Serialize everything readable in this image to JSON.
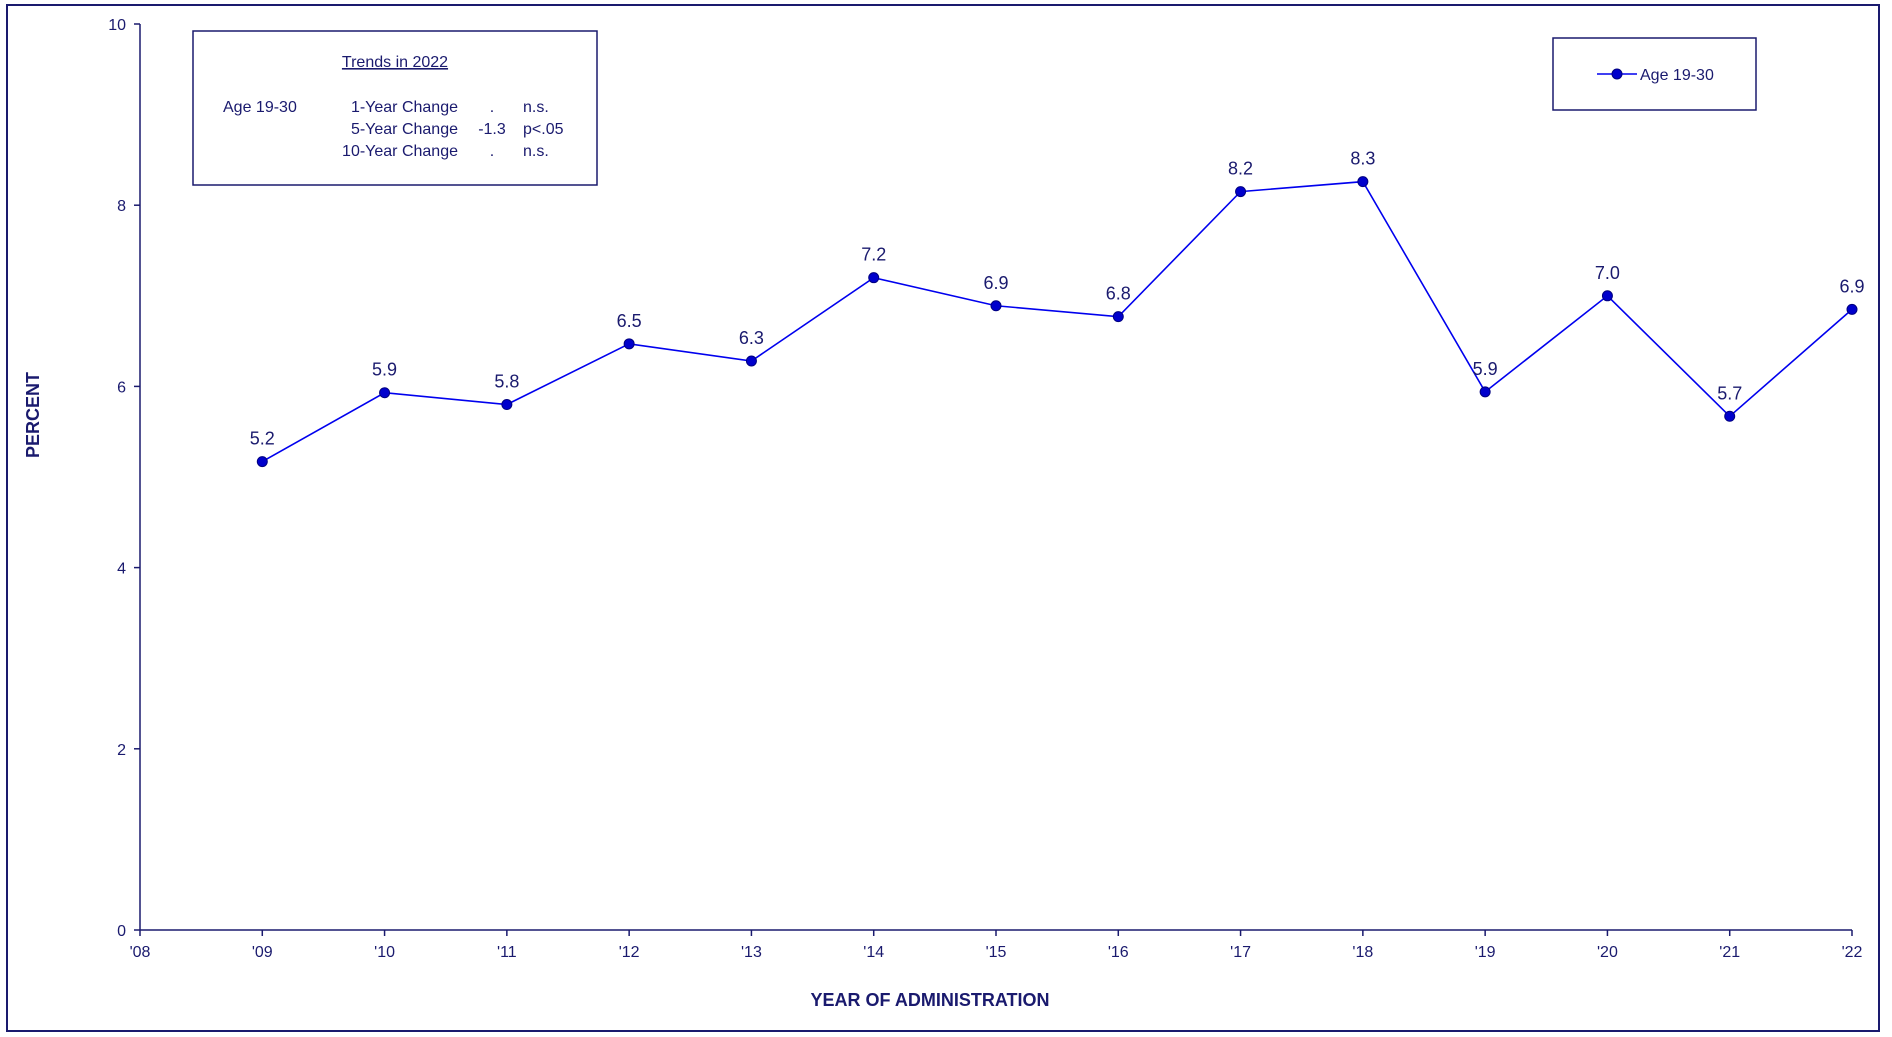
{
  "chart_data": {
    "type": "line",
    "x": [
      "'09",
      "'10",
      "'11",
      "'12",
      "'13",
      "'14",
      "'15",
      "'16",
      "'17",
      "'18",
      "'19",
      "'20",
      "'21",
      "'22"
    ],
    "x_tick_labels": [
      "'08",
      "'09",
      "'10",
      "'11",
      "'12",
      "'13",
      "'14",
      "'15",
      "'16",
      "'17",
      "'18",
      "'19",
      "'20",
      "'21",
      "'22"
    ],
    "series": [
      {
        "name": "Age 19-30",
        "values": [
          5.17,
          5.93,
          5.8,
          6.47,
          6.28,
          7.2,
          6.89,
          6.77,
          8.15,
          8.26,
          5.94,
          7.0,
          5.67,
          6.85
        ],
        "labels": [
          "5.2",
          "5.9",
          "5.8",
          "6.5",
          "6.3",
          "7.2",
          "6.9",
          "6.8",
          "8.2",
          "8.3",
          "5.9",
          "7.0",
          "5.7",
          "6.9"
        ]
      }
    ],
    "ylim": [
      0,
      10
    ],
    "y_ticks": [
      0,
      2,
      4,
      6,
      8,
      10
    ],
    "xlabel": "YEAR OF ADMINISTRATION",
    "ylabel": "PERCENT",
    "grid": false,
    "legend": "top-right",
    "color": "#0000ee",
    "axis_color": "#1a1a6e"
  },
  "trends_box": {
    "title": "Trends in 2022",
    "group": "Age 19-30",
    "rows": [
      {
        "label": "1-Year Change",
        "value": ".",
        "sig": "n.s."
      },
      {
        "label": "5-Year Change",
        "value": "-1.3",
        "sig": "p<.05"
      },
      {
        "label": "10-Year Change",
        "value": ".",
        "sig": "n.s."
      }
    ]
  }
}
